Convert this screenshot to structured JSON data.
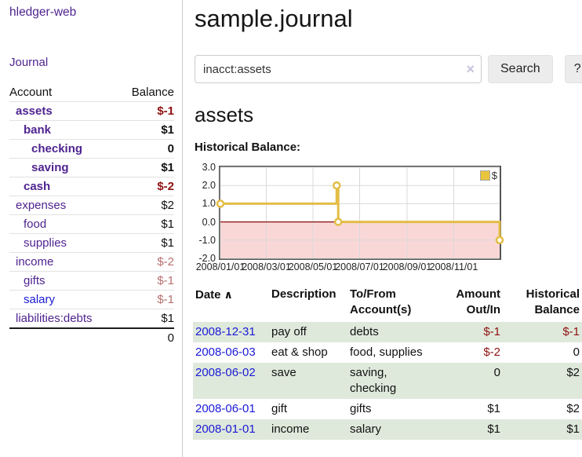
{
  "app": {
    "brand": "hledger-web",
    "nav": {
      "journal": "Journal"
    }
  },
  "sidebar": {
    "account_header": "Account",
    "balance_header": "Balance",
    "rows": [
      {
        "account": "assets",
        "balance": "$-1",
        "level": 1,
        "emph": true,
        "account_color": "purple",
        "balance_tone": "strong"
      },
      {
        "account": "bank",
        "balance": "$1",
        "level": 2,
        "emph": true,
        "account_color": "purple",
        "balance_tone": "none"
      },
      {
        "account": "checking",
        "balance": "0",
        "level": 3,
        "emph": true,
        "account_color": "purple",
        "balance_tone": "none"
      },
      {
        "account": "saving",
        "balance": "$1",
        "level": 3,
        "emph": true,
        "account_color": "purple",
        "balance_tone": "none"
      },
      {
        "account": "cash",
        "balance": "$-2",
        "level": 2,
        "emph": true,
        "account_color": "purple",
        "balance_tone": "strong"
      },
      {
        "account": "expenses",
        "balance": "$2",
        "level": 1,
        "emph": false,
        "account_color": "purple",
        "balance_tone": "none"
      },
      {
        "account": "food",
        "balance": "$1",
        "level": 2,
        "emph": false,
        "account_color": "purple",
        "balance_tone": "none"
      },
      {
        "account": "supplies",
        "balance": "$1",
        "level": 2,
        "emph": false,
        "account_color": "purple",
        "balance_tone": "none"
      },
      {
        "account": "income",
        "balance": "$-2",
        "level": 1,
        "emph": false,
        "account_color": "purple",
        "balance_tone": "soft"
      },
      {
        "account": "gifts",
        "balance": "$-1",
        "level": 2,
        "emph": false,
        "account_color": "purple",
        "balance_tone": "soft"
      },
      {
        "account": "salary",
        "balance": "$-1",
        "level": 2,
        "emph": false,
        "account_color": "blue",
        "balance_tone": "soft"
      },
      {
        "account": "liabilities:debts",
        "balance": "$1",
        "level": 1,
        "emph": false,
        "account_color": "purple",
        "balance_tone": "none"
      }
    ],
    "total": "0"
  },
  "main": {
    "title": "sample.journal",
    "search": {
      "value": "inacct:assets",
      "clear_icon": "×",
      "search_button": "Search",
      "help_button": "?"
    },
    "account_title": "assets",
    "chart_heading": "Historical Balance:"
  },
  "chart_data": {
    "type": "line",
    "title": "Historical Balance:",
    "step": true,
    "series": [
      {
        "name": "$",
        "points": [
          [
            "2008-01-01",
            1
          ],
          [
            "2008-06-01",
            2
          ],
          [
            "2008-06-03",
            0
          ],
          [
            "2008-12-31",
            -1
          ]
        ]
      }
    ],
    "x_range": [
      "2008-01-01",
      "2008-12-31"
    ],
    "ylim": [
      -2.0,
      3.0
    ],
    "y_ticks": [
      3.0,
      2.0,
      1.0,
      0.0,
      -1.0,
      -2.0
    ],
    "x_ticks": [
      "2008-01-01",
      "2008-03-01",
      "2008-05-01",
      "2008-07-01",
      "2008-09-01",
      "2008-11-01"
    ],
    "x_tick_labels": [
      "2008/01/01",
      "2008/03/01",
      "2008/05/01",
      "2008/07/01",
      "2008/09/01",
      "2008/11/01"
    ],
    "grid": true,
    "legend": {
      "label": "$",
      "position": "top-right"
    },
    "colors": {
      "line": "#e3bd45",
      "marker_fill": "#ffffff",
      "negative_fill": "#fad7d7",
      "zero_line": "#8b0e0e",
      "grid": "#d9d9d9",
      "border": "#555555",
      "legend_swatch": "#e9c53e"
    }
  },
  "register": {
    "columns": [
      {
        "label": "Date",
        "sort_icon": "∧"
      },
      {
        "label": "Description"
      },
      {
        "label": "To/From Account(s)"
      },
      {
        "label": "Amount Out/In"
      },
      {
        "label": "Historical Balance"
      }
    ],
    "rows": [
      {
        "date": "2008-12-31",
        "description": "pay off",
        "accounts": "debts",
        "amount": "$-1",
        "amount_negative": true,
        "balance": "$-1",
        "balance_negative": true
      },
      {
        "date": "2008-06-03",
        "description": "eat & shop",
        "accounts": "food, supplies",
        "amount": "$-2",
        "amount_negative": true,
        "balance": "0",
        "balance_negative": false
      },
      {
        "date": "2008-06-02",
        "description": "save",
        "accounts": "saving,\nchecking",
        "amount": "0",
        "amount_negative": false,
        "balance": "$2",
        "balance_negative": false
      },
      {
        "date": "2008-06-01",
        "description": "gift",
        "accounts": "gifts",
        "amount": "$1",
        "amount_negative": false,
        "balance": "$2",
        "balance_negative": false
      },
      {
        "date": "2008-01-01",
        "description": "income",
        "accounts": "salary",
        "amount": "$1",
        "amount_negative": false,
        "balance": "$1",
        "balance_negative": false
      }
    ]
  }
}
